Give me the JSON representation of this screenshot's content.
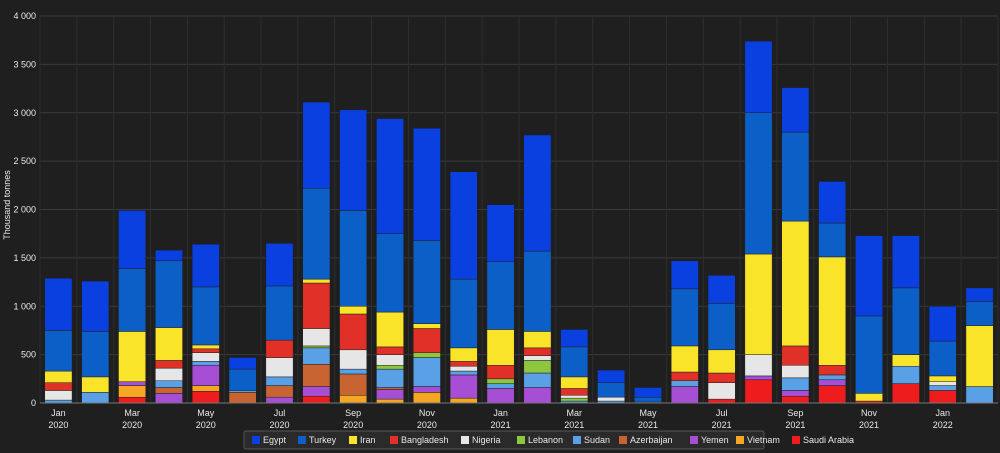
{
  "chart_data": {
    "type": "bar",
    "stacked": true,
    "ylabel": "Thousand tonnes",
    "ylim": [
      0,
      4000
    ],
    "yticks": [
      0,
      500,
      1000,
      1500,
      2000,
      2500,
      3000,
      3500,
      4000
    ],
    "ytick_labels": [
      "0",
      "500",
      "1 000",
      "1 500",
      "2 000",
      "2 500",
      "3 000",
      "3 500",
      "4 000"
    ],
    "grid": true,
    "legend_position": "bottom",
    "categories": [
      "Jan 2020",
      "Feb 2020",
      "Mar 2020",
      "Apr 2020",
      "May 2020",
      "Jun 2020",
      "Jul 2020",
      "Aug 2020",
      "Sep 2020",
      "Oct 2020",
      "Nov 2020",
      "Dec 2020",
      "Jan 2021",
      "Feb 2021",
      "Mar 2021",
      "Apr 2021",
      "May 2021",
      "Jun 2021",
      "Jul 2021",
      "Aug 2021",
      "Sep 2021",
      "Oct 2021",
      "Nov 2021",
      "Dec 2021",
      "Jan 2022",
      "Feb 2022"
    ],
    "x_tick_labels": [
      {
        "index": 0,
        "line1": "Jan",
        "line2": "2020"
      },
      {
        "index": 2,
        "line1": "Mar",
        "line2": "2020"
      },
      {
        "index": 4,
        "line1": "May",
        "line2": "2020"
      },
      {
        "index": 6,
        "line1": "Jul",
        "line2": "2020"
      },
      {
        "index": 8,
        "line1": "Sep",
        "line2": "2020"
      },
      {
        "index": 10,
        "line1": "Nov",
        "line2": "2020"
      },
      {
        "index": 12,
        "line1": "Jan",
        "line2": "2021"
      },
      {
        "index": 14,
        "line1": "Mar",
        "line2": "2021"
      },
      {
        "index": 16,
        "line1": "May",
        "line2": "2021"
      },
      {
        "index": 18,
        "line1": "Jul",
        "line2": "2021"
      },
      {
        "index": 20,
        "line1": "Sep",
        "line2": "2021"
      },
      {
        "index": 22,
        "line1": "Nov",
        "line2": "2021"
      },
      {
        "index": 24,
        "line1": "Jan",
        "line2": "2022"
      }
    ],
    "series": [
      {
        "name": "Saudi Arabia",
        "color": "#ee1c1c",
        "values": [
          0,
          0,
          60,
          0,
          120,
          0,
          0,
          70,
          0,
          0,
          0,
          0,
          0,
          0,
          0,
          0,
          0,
          0,
          40,
          240,
          70,
          180,
          20,
          200,
          130,
          0
        ]
      },
      {
        "name": "Vietnam",
        "color": "#f5a623",
        "values": [
          0,
          0,
          120,
          0,
          60,
          0,
          0,
          0,
          80,
          40,
          110,
          50,
          0,
          0,
          0,
          0,
          0,
          0,
          0,
          0,
          0,
          0,
          0,
          0,
          0,
          0
        ]
      },
      {
        "name": "Yemen",
        "color": "#a64ed4",
        "values": [
          0,
          0,
          40,
          100,
          210,
          0,
          60,
          100,
          0,
          100,
          60,
          240,
          150,
          160,
          0,
          0,
          0,
          170,
          0,
          40,
          60,
          60,
          0,
          0,
          0,
          0
        ]
      },
      {
        "name": "Azerbaijan",
        "color": "#c86432",
        "values": [
          0,
          0,
          0,
          60,
          0,
          110,
          120,
          230,
          220,
          20,
          0,
          0,
          0,
          0,
          0,
          0,
          0,
          0,
          0,
          0,
          0,
          0,
          0,
          0,
          0,
          0
        ]
      },
      {
        "name": "Sudan",
        "color": "#5aa0e6",
        "values": [
          30,
          110,
          0,
          70,
          40,
          20,
          90,
          170,
          50,
          190,
          300,
          40,
          50,
          150,
          20,
          20,
          0,
          60,
          0,
          0,
          130,
          50,
          0,
          180,
          50,
          170
        ]
      },
      {
        "name": "Lebanon",
        "color": "#8dc63f",
        "values": [
          0,
          0,
          0,
          0,
          0,
          0,
          0,
          20,
          0,
          40,
          50,
          0,
          50,
          130,
          30,
          0,
          0,
          0,
          0,
          0,
          0,
          0,
          0,
          0,
          0,
          0
        ]
      },
      {
        "name": "Nigeria",
        "color": "#e6e6e6",
        "values": [
          100,
          0,
          0,
          130,
          90,
          0,
          200,
          180,
          200,
          110,
          0,
          50,
          0,
          50,
          30,
          40,
          10,
          0,
          170,
          220,
          130,
          0,
          0,
          0,
          40,
          0
        ]
      },
      {
        "name": "Bangladesh",
        "color": "#e03028",
        "values": [
          80,
          0,
          0,
          80,
          40,
          0,
          180,
          470,
          370,
          80,
          250,
          50,
          140,
          80,
          70,
          0,
          0,
          90,
          100,
          0,
          200,
          100,
          0,
          0,
          0,
          0
        ]
      },
      {
        "name": "Iran",
        "color": "#f9e42a",
        "values": [
          120,
          160,
          520,
          340,
          40,
          0,
          0,
          40,
          80,
          360,
          50,
          140,
          370,
          170,
          120,
          0,
          0,
          270,
          240,
          1040,
          1290,
          1120,
          80,
          120,
          60,
          630
        ]
      },
      {
        "name": "Turkey",
        "color": "#0d5fc8",
        "values": [
          420,
          470,
          650,
          690,
          600,
          220,
          560,
          940,
          990,
          810,
          860,
          710,
          700,
          830,
          310,
          150,
          50,
          590,
          480,
          1460,
          920,
          350,
          800,
          690,
          360,
          250
        ]
      },
      {
        "name": "Egypt",
        "color": "#0a3fe0",
        "values": [
          540,
          520,
          600,
          110,
          440,
          120,
          440,
          890,
          1040,
          1190,
          1160,
          1110,
          590,
          1200,
          180,
          130,
          100,
          290,
          290,
          740,
          460,
          430,
          830,
          540,
          360,
          140
        ]
      }
    ],
    "legend_order": [
      "Egypt",
      "Turkey",
      "Iran",
      "Bangladesh",
      "Nigeria",
      "Lebanon",
      "Sudan",
      "Azerbaijan",
      "Yemen",
      "Vietnam",
      "Saudi Arabia"
    ]
  }
}
